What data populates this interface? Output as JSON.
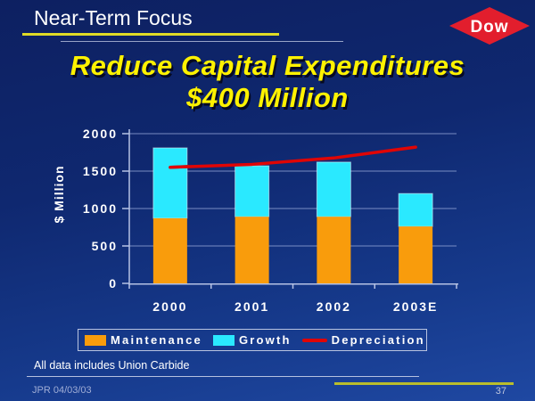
{
  "slide": {
    "header": {
      "title": "Near-Term Focus",
      "logo_text": "Dow"
    },
    "main_title": {
      "line1": "Reduce Capital Expenditures",
      "line2": "$400 Million"
    },
    "footer": {
      "note": "All data includes Union Carbide",
      "initials_date": "JPR 04/03/03",
      "page_number": "37"
    }
  },
  "colors": {
    "background_top": "#0d2061",
    "background_bottom": "#1f48a2",
    "accent_yellow": "#fff200",
    "header_rule_yellow": "#dfdb26",
    "footer_rule_olive": "#b9bd2c",
    "dow_red": "#e21e2d",
    "maintenance_orange": "#f99c0c",
    "growth_cyan": "#2ae9ff",
    "depreciation_red": "#e00505",
    "grid_line": "#93a5d6"
  },
  "chart_data": {
    "type": "bar",
    "stacked": true,
    "categories": [
      "2000",
      "2001",
      "2002",
      "2003E"
    ],
    "series": [
      {
        "name": "Maintenance",
        "type": "bar",
        "color": "#f99c0c",
        "values": [
          870,
          890,
          890,
          760
        ]
      },
      {
        "name": "Growth",
        "type": "bar",
        "color": "#2ae9ff",
        "values": [
          940,
          680,
          730,
          440
        ]
      },
      {
        "name": "Depreciation",
        "type": "line",
        "color": "#e00505",
        "values": [
          1550,
          1590,
          1675,
          1820
        ]
      }
    ],
    "stack_totals": [
      1810,
      1570,
      1620,
      1200
    ],
    "ylabel": "$ Million",
    "ylim": [
      0,
      2000
    ],
    "yticks": [
      0,
      500,
      1000,
      1500,
      2000
    ],
    "grid": true,
    "legend": [
      "Maintenance",
      "Growth",
      "Depreciation"
    ],
    "legend_position": "bottom"
  }
}
